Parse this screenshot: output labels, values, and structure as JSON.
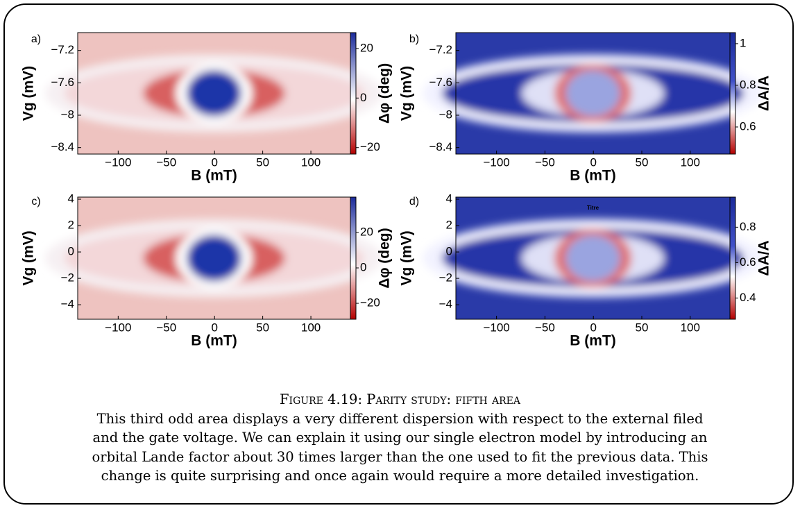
{
  "chart_data": [
    {
      "type": "heatmap",
      "panel_label": "a)",
      "xlabel": "B (mT)",
      "ylabel": "Vg (mV)",
      "colorbar_label": "Δφ (deg)",
      "colormap": "diverging",
      "xlim": [
        -142,
        141
      ],
      "xticks": [
        {
          "value": -100,
          "label": "−100"
        },
        {
          "value": -50,
          "label": "−50"
        },
        0,
        50,
        100
      ],
      "ylim": [
        -8.48,
        -6.98
      ],
      "yticks": [
        {
          "value": -7.2,
          "label": "−7.2"
        },
        {
          "value": -7.6,
          "label": "−7.6"
        },
        {
          "value": -8,
          "label": "−8"
        },
        {
          "value": -8.4,
          "label": "−8.4"
        }
      ],
      "clim": [
        -22.6,
        26.4
      ],
      "cticks": [
        20,
        0,
        {
          "value": -20,
          "label": "−20"
        }
      ]
    },
    {
      "type": "heatmap",
      "panel_label": "b)",
      "xlabel": "B (mT)",
      "ylabel": "Vg (mV)",
      "colorbar_label": "ΔA/A",
      "colormap": "amplitude",
      "xlim": [
        -142,
        141
      ],
      "xticks": [
        {
          "value": -100,
          "label": "−100"
        },
        {
          "value": -50,
          "label": "−50"
        },
        0,
        50,
        100
      ],
      "ylim": [
        -8.48,
        -6.98
      ],
      "yticks": [
        {
          "value": -7.2,
          "label": "−7.2"
        },
        {
          "value": -7.6,
          "label": "−7.6"
        },
        {
          "value": -8,
          "label": "−8"
        },
        {
          "value": -8.4,
          "label": "−8.4"
        }
      ],
      "clim": [
        0.47,
        1.053
      ],
      "cticks": [
        1,
        0.8,
        0.6
      ]
    },
    {
      "type": "heatmap",
      "panel_label": "c)",
      "xlabel": "B (mT)",
      "ylabel": "Vg (mV)",
      "colorbar_label": "Δφ (deg)",
      "colormap": "diverging",
      "xlim": [
        -142,
        141
      ],
      "xticks": [
        {
          "value": -100,
          "label": "−100"
        },
        {
          "value": -50,
          "label": "−50"
        },
        0,
        50,
        100
      ],
      "ylim": [
        -5.1,
        4.16
      ],
      "yticks": [
        4,
        2,
        0,
        {
          "value": -2,
          "label": "−2"
        },
        {
          "value": -4,
          "label": "−4"
        }
      ],
      "clim": [
        -29,
        40
      ],
      "cticks": [
        20,
        0,
        {
          "value": -20,
          "label": "−20"
        }
      ]
    },
    {
      "type": "heatmap",
      "panel_label": "d)",
      "title": "Titre",
      "xlabel": "B (mT)",
      "ylabel": "Vg (mV)",
      "colorbar_label": "ΔA/A",
      "colormap": "amplitude",
      "xlim": [
        -142,
        141
      ],
      "xticks": [
        {
          "value": -100,
          "label": "−100"
        },
        {
          "value": -50,
          "label": "−50"
        },
        0,
        50,
        100
      ],
      "ylim": [
        -5.1,
        4.16
      ],
      "yticks": [
        4,
        2,
        0,
        {
          "value": -2,
          "label": "−2"
        },
        {
          "value": -4,
          "label": "−4"
        }
      ],
      "clim": [
        0.28,
        0.97
      ],
      "cticks": [
        0.8,
        0.6,
        0.4
      ]
    }
  ],
  "caption": {
    "title": "Figure 4.19: Parity study: fifth area",
    "text": "This third odd area displays a very different dispersion with respect to the external filed and the gate voltage. We can explain it using our single electron model by introducing an orbital Lande factor about 30 times larger than the one used to fit the previous data. This change is quite surprising and once again would require a more detailed investigation."
  }
}
